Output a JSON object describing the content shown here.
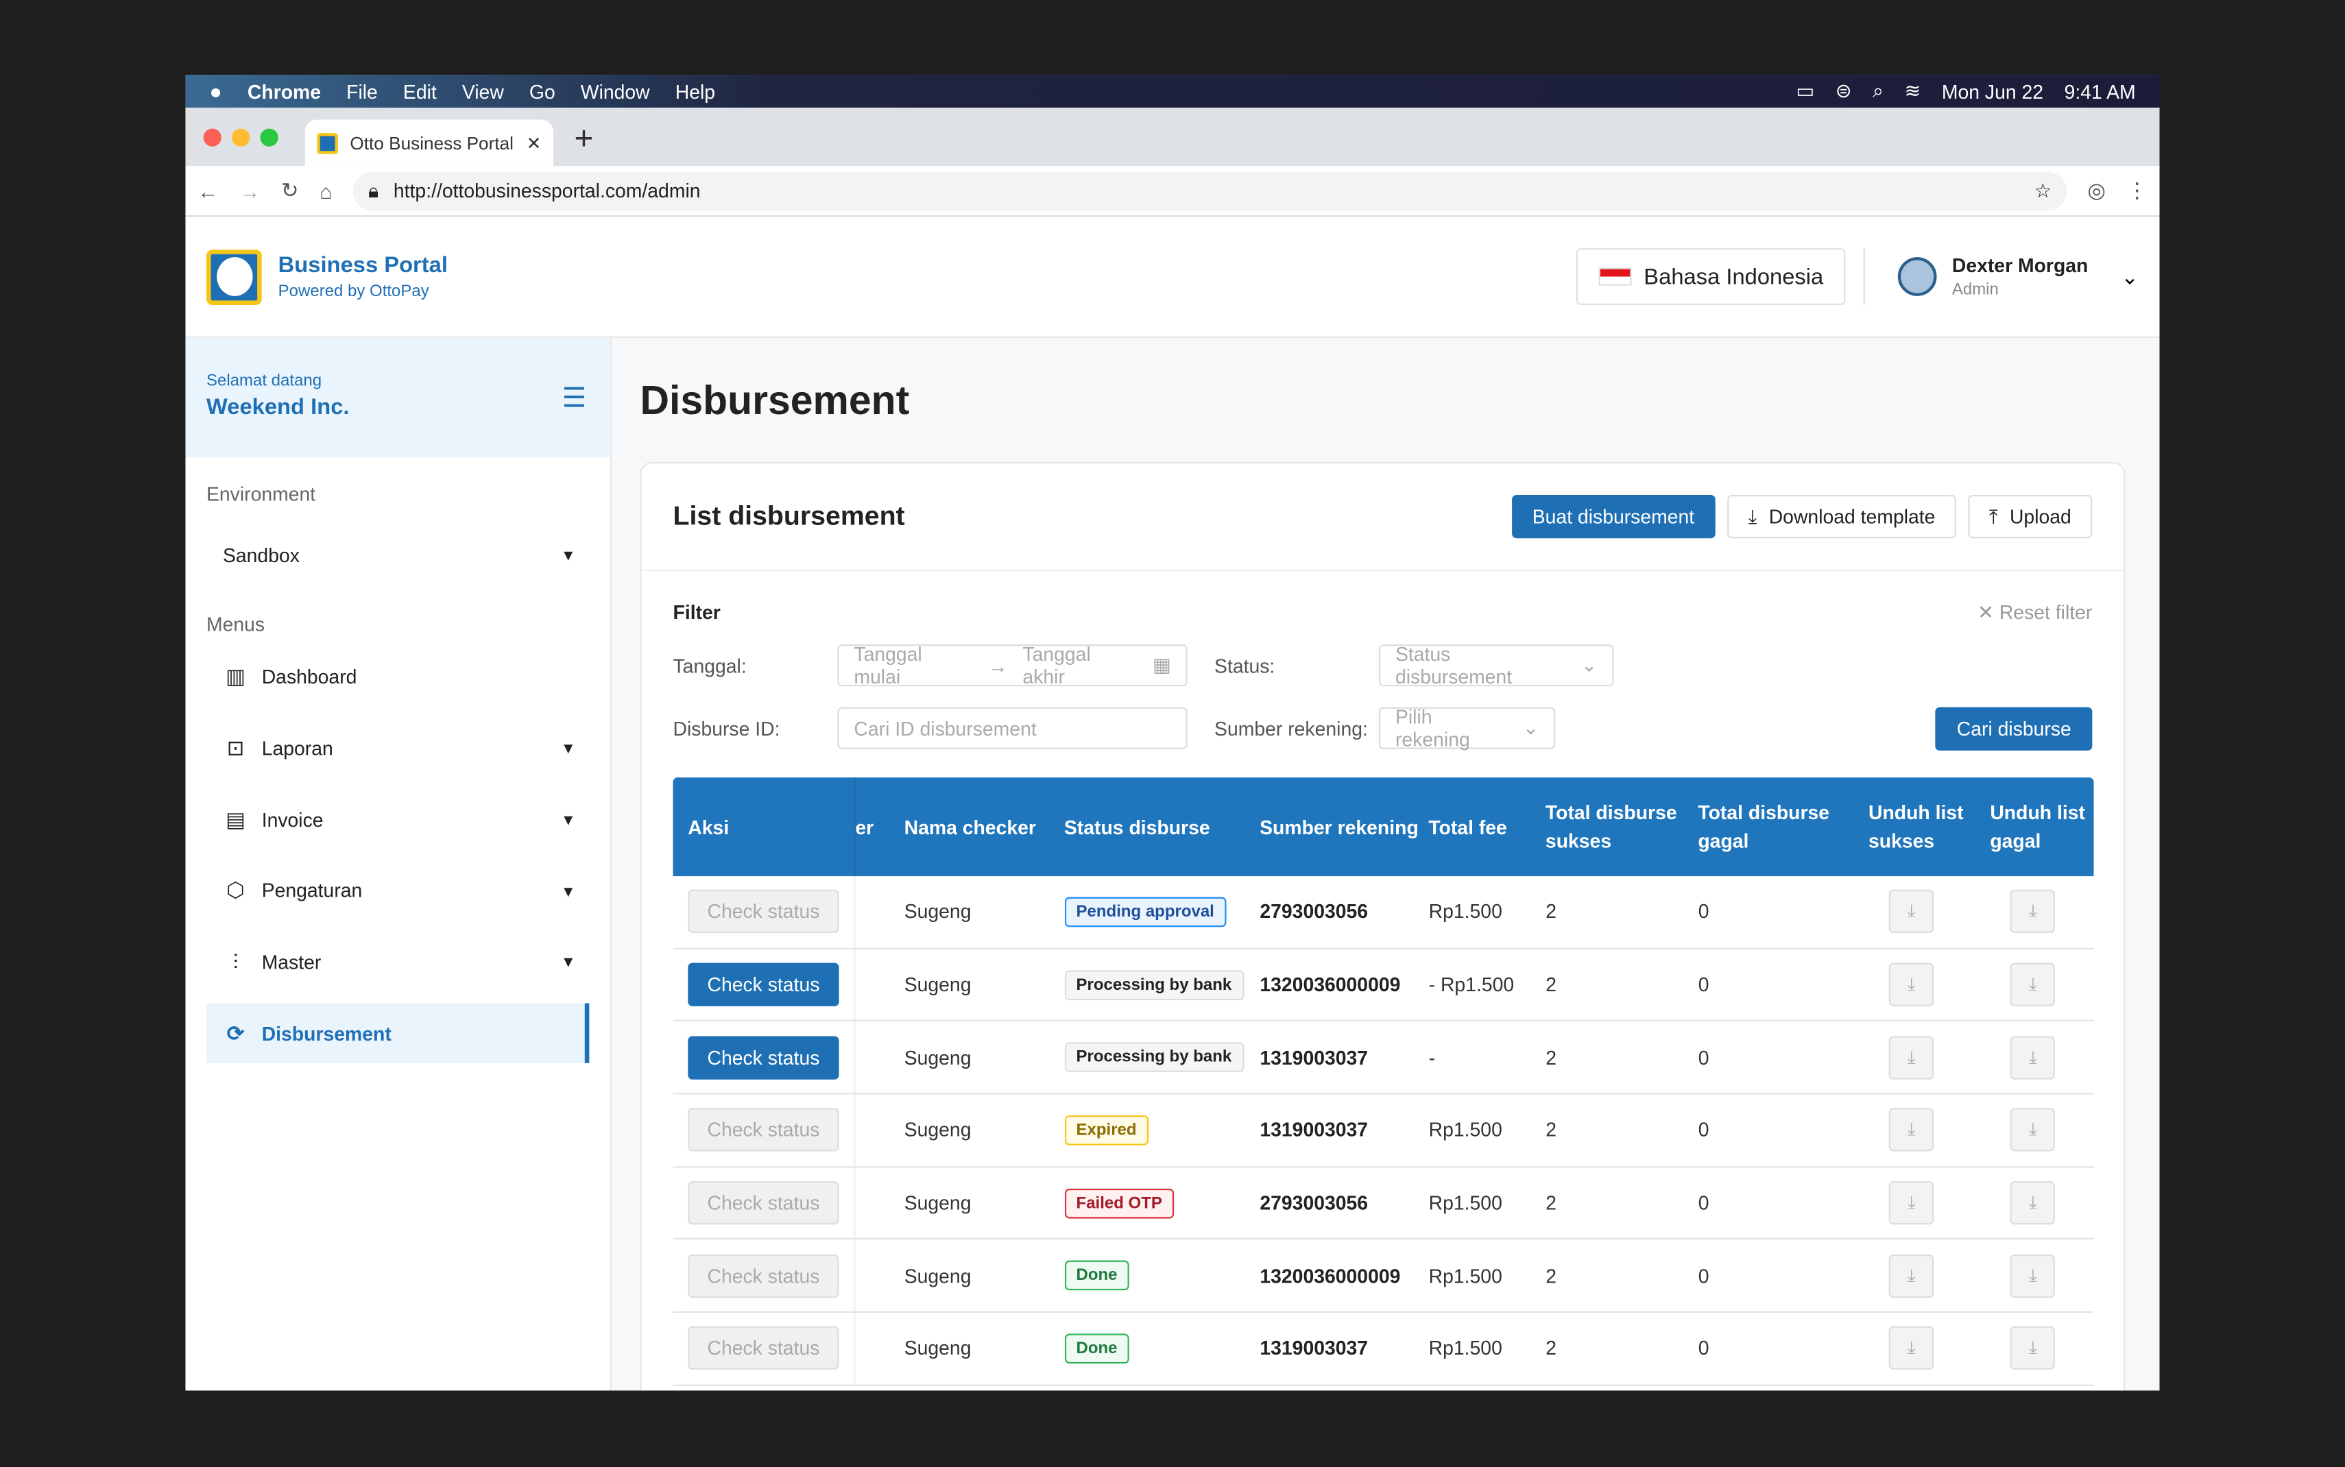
{
  "os_menu": {
    "apple": "",
    "items": [
      "Chrome",
      "File",
      "Edit",
      "View",
      "Go",
      "Window",
      "Help"
    ],
    "date": "Mon Jun 22",
    "time": "9:41 AM"
  },
  "browser": {
    "tab_title": "Otto Business Portal",
    "url": "http://ottobusinessportal.com/admin"
  },
  "header": {
    "brand": "Business Portal",
    "powered": "Powered by OttoPay",
    "language": "Bahasa Indonesia",
    "user_name": "Dexter Morgan",
    "user_role": "Admin"
  },
  "sidebar": {
    "welcome": "Selamat datang",
    "company": "Weekend Inc.",
    "env_label": "Environment",
    "env_value": "Sandbox",
    "menus_label": "Menus",
    "items": [
      {
        "label": "Dashboard",
        "icon": "chart-icon",
        "chev": false
      },
      {
        "label": "Laporan",
        "icon": "report-icon",
        "chev": true
      },
      {
        "label": "Invoice",
        "icon": "document-icon",
        "chev": true
      },
      {
        "label": "Pengaturan",
        "icon": "settings-icon",
        "chev": true
      },
      {
        "label": "Master",
        "icon": "sliders-icon",
        "chev": true
      },
      {
        "label": "Disbursement",
        "icon": "disbursement-icon",
        "chev": false,
        "active": true
      }
    ]
  },
  "page": {
    "title": "Disbursement",
    "card_title": "List disbursement",
    "create": "Buat disbursement",
    "download_template": "Download template",
    "upload": "Upload"
  },
  "filter": {
    "title": "Filter",
    "reset": "Reset filter",
    "date_label": "Tanggal:",
    "date_start": "Tanggal mulai",
    "date_end": "Tanggal akhir",
    "status_label": "Status:",
    "status_placeholder": "Status disbursement",
    "id_label": "Disburse ID:",
    "id_placeholder": "Cari ID disbursement",
    "source_label": "Sumber rekening:",
    "source_placeholder": "Pilih rekening",
    "search": "Cari disburse"
  },
  "table": {
    "columns": [
      "Aksi",
      "er",
      "Nama checker",
      "Status disburse",
      "Sumber rekening",
      "Total fee",
      "Total disburse sukses",
      "Total disburse gagal",
      "Unduh list sukses",
      "Unduh list gagal"
    ],
    "action_label": "Check status",
    "rows": [
      {
        "enabled": false,
        "checker": "Sugeng",
        "status": "Pending approval",
        "status_type": "pending",
        "source": "2793003056",
        "fee": "Rp1.500",
        "success": "2",
        "failed": "0"
      },
      {
        "enabled": true,
        "checker": "Sugeng",
        "status": "Processing by bank",
        "status_type": "processing",
        "source": "1320036000009",
        "fee": "-  Rp1.500",
        "success": "2",
        "failed": "0"
      },
      {
        "enabled": true,
        "checker": "Sugeng",
        "status": "Processing by bank",
        "status_type": "processing",
        "source": "1319003037",
        "fee": "-",
        "success": "2",
        "failed": "0"
      },
      {
        "enabled": false,
        "checker": "Sugeng",
        "status": "Expired",
        "status_type": "expired",
        "source": "1319003037",
        "fee": "Rp1.500",
        "success": "2",
        "failed": "0"
      },
      {
        "enabled": false,
        "checker": "Sugeng",
        "status": "Failed OTP",
        "status_type": "failed",
        "source": "2793003056",
        "fee": "Rp1.500",
        "success": "2",
        "failed": "0"
      },
      {
        "enabled": false,
        "checker": "Sugeng",
        "status": "Done",
        "status_type": "done",
        "source": "1320036000009",
        "fee": "Rp1.500",
        "success": "2",
        "failed": "0"
      },
      {
        "enabled": false,
        "checker": "Sugeng",
        "status": "Done",
        "status_type": "done",
        "source": "1319003037",
        "fee": "Rp1.500",
        "success": "2",
        "failed": "0"
      }
    ]
  },
  "colors": {
    "primary": "#1f6fb5",
    "table_header": "#1f76bd",
    "pending": "#1a8cff",
    "processing": "#dddddd",
    "expired": "#f5c518",
    "failed": "#d93040",
    "done": "#2fb35a"
  }
}
